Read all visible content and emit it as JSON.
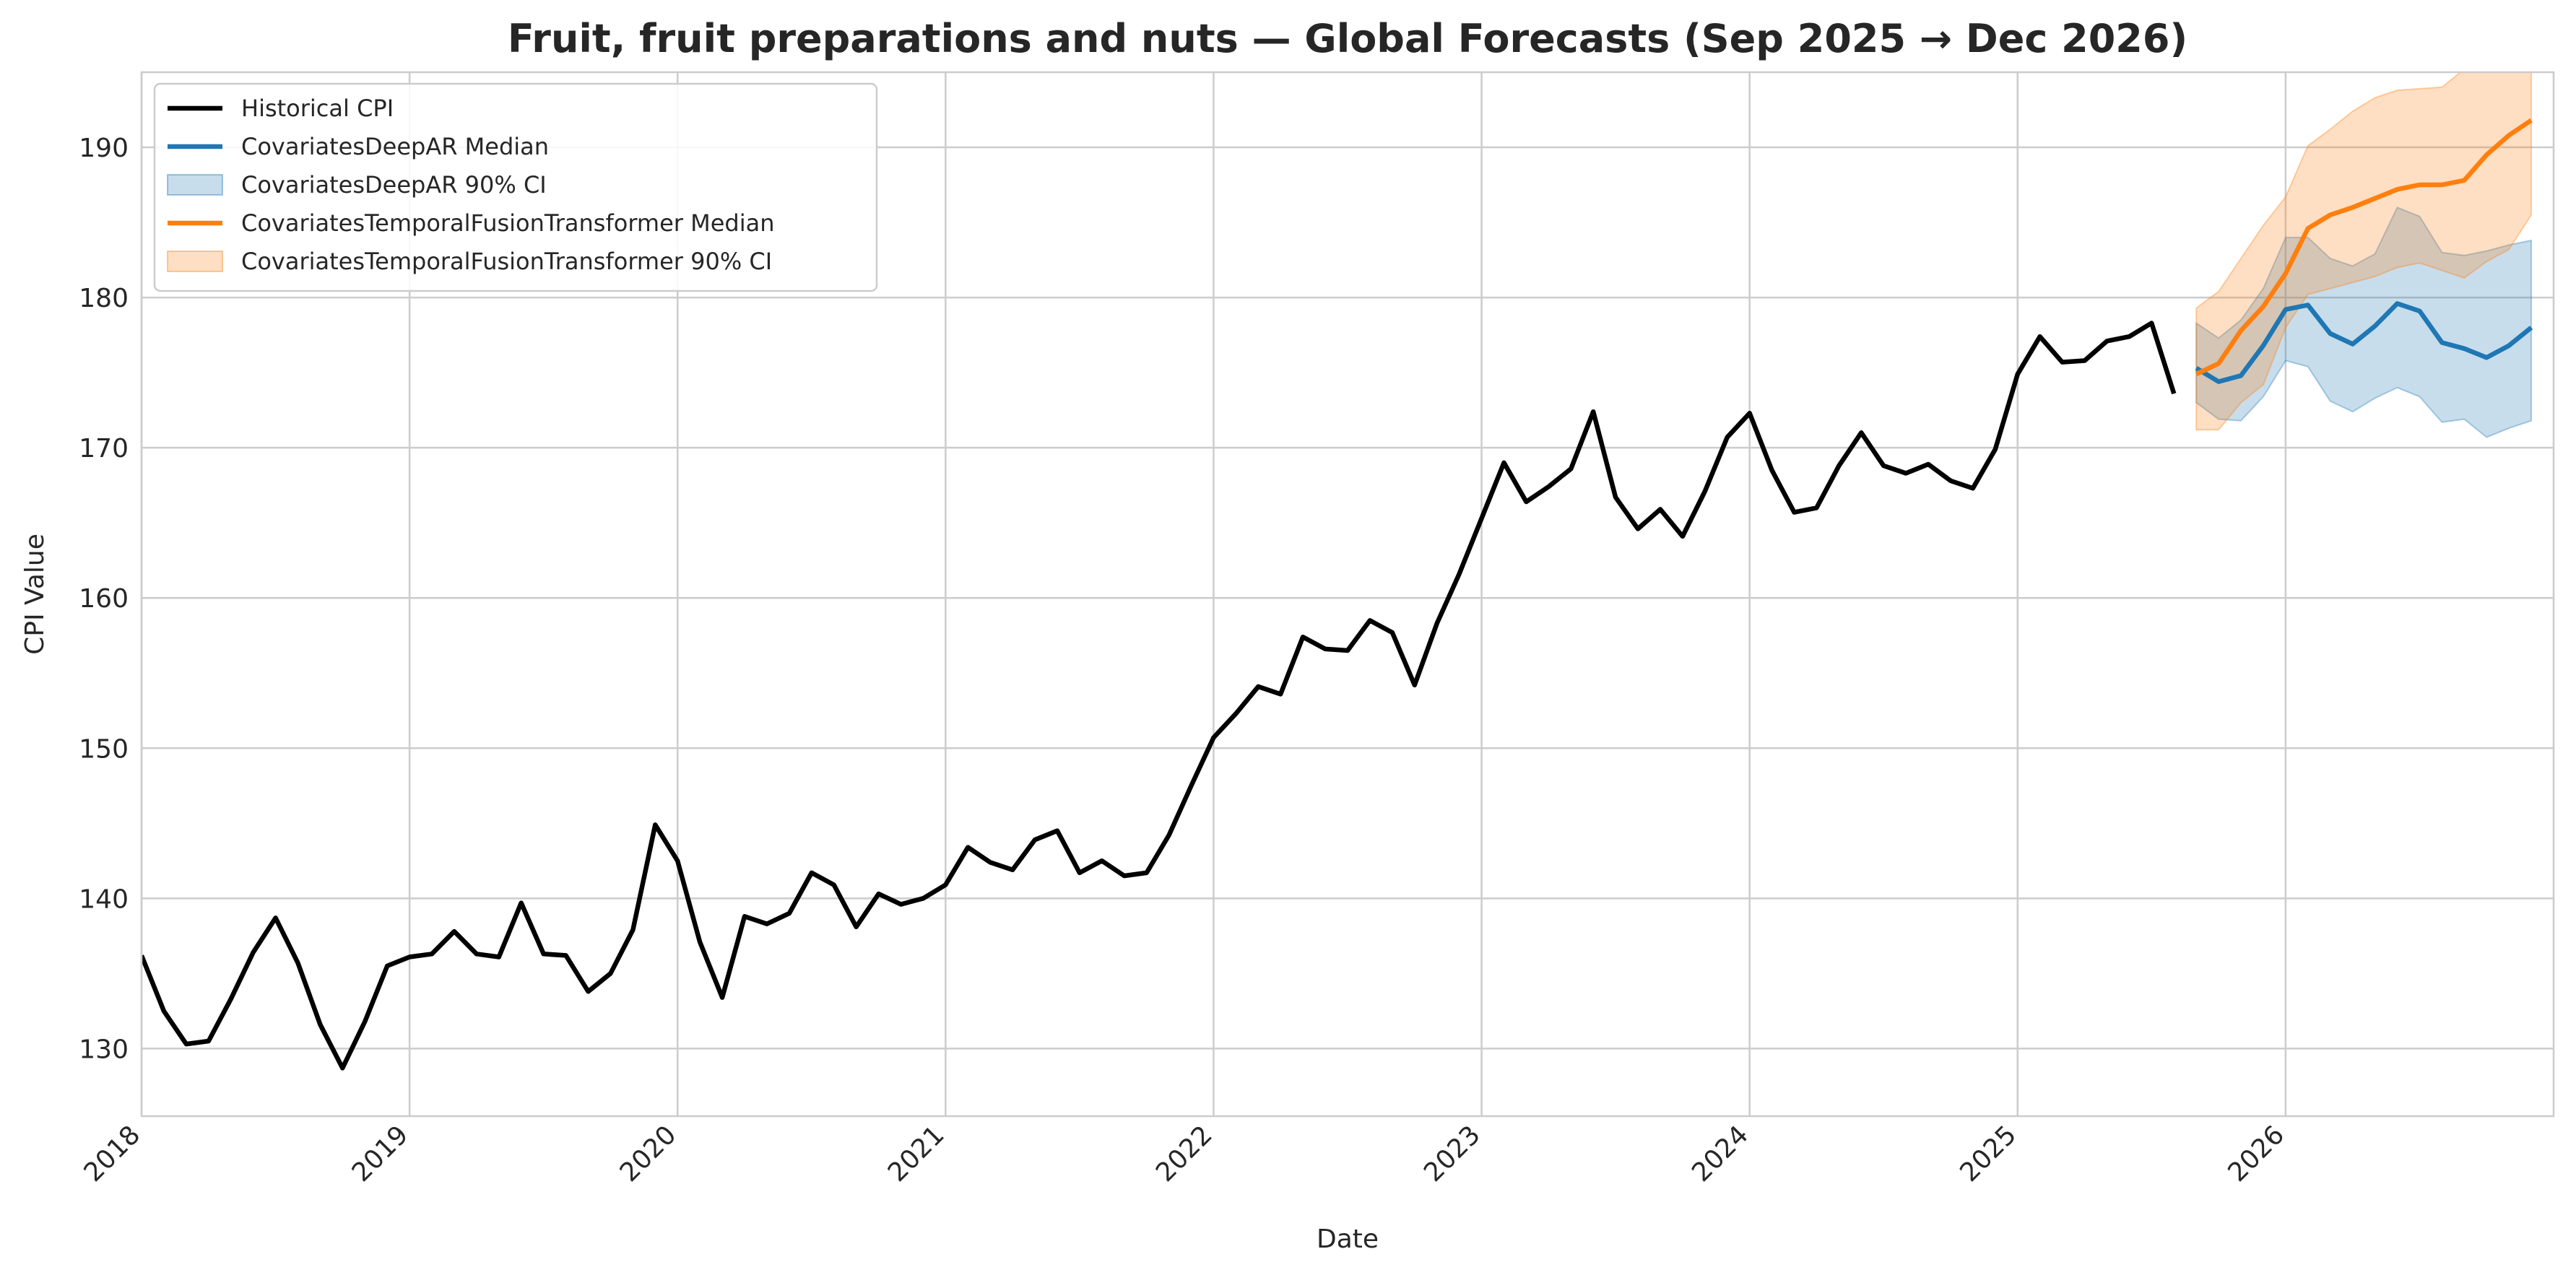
{
  "chart_data": {
    "type": "line",
    "title": "Fruit, fruit preparations and nuts — Global Forecasts (Sep 2025 → Dec 2026)",
    "xlabel": "Date",
    "ylabel": "CPI Value",
    "xlim": [
      "2018-01",
      "2027-01"
    ],
    "ylim": [
      125.5,
      195
    ],
    "grid": true,
    "legend_position": "top-left",
    "x_ticks": [
      "2018",
      "2019",
      "2020",
      "2021",
      "2022",
      "2023",
      "2024",
      "2025",
      "2026"
    ],
    "y_ticks": [
      130,
      140,
      150,
      160,
      170,
      180,
      190
    ],
    "legend": [
      {
        "label": "Historical CPI",
        "kind": "line",
        "color": "#000000"
      },
      {
        "label": "CovariatesDeepAR Median",
        "kind": "line",
        "color": "#1f77b4"
      },
      {
        "label": "CovariatesDeepAR 90% CI",
        "kind": "band",
        "color": "#1f77b4"
      },
      {
        "label": "CovariatesTemporalFusionTransformer Median",
        "kind": "line",
        "color": "#ff7f0e"
      },
      {
        "label": "CovariatesTemporalFusionTransformer 90% CI",
        "kind": "band",
        "color": "#ff7f0e"
      }
    ],
    "historical": {
      "name": "Historical CPI",
      "color": "#000000",
      "start": "2018-01",
      "values": [
        136.2,
        132.5,
        130.3,
        130.5,
        133.3,
        136.4,
        138.7,
        135.7,
        131.6,
        128.7,
        131.8,
        135.5,
        136.1,
        136.3,
        137.8,
        136.3,
        136.1,
        139.7,
        136.3,
        136.2,
        133.8,
        135.0,
        137.9,
        144.9,
        142.5,
        137.1,
        133.4,
        138.8,
        138.3,
        139.0,
        141.7,
        140.9,
        138.1,
        140.3,
        139.6,
        140.0,
        140.9,
        143.4,
        142.4,
        141.9,
        143.9,
        144.5,
        141.7,
        142.5,
        141.5,
        141.7,
        144.2,
        147.5,
        150.7,
        152.3,
        154.1,
        153.6,
        157.4,
        156.6,
        156.5,
        158.5,
        157.7,
        154.2,
        158.3,
        161.6,
        165.3,
        169.0,
        166.4,
        167.4,
        168.6,
        172.4,
        166.7,
        164.6,
        165.9,
        164.1,
        167.1,
        170.7,
        172.3,
        168.5,
        165.7,
        166.0,
        168.8,
        171.0,
        168.8,
        168.3,
        168.9,
        167.8,
        167.3,
        169.9,
        174.9,
        177.4,
        175.7,
        175.8,
        177.1,
        177.4,
        178.3,
        173.6
      ]
    },
    "series": [
      {
        "name": "CovariatesDeepAR",
        "color": "#1f77b4",
        "start": "2025-09",
        "median": [
          175.3,
          174.4,
          174.8,
          176.8,
          179.2,
          179.5,
          177.6,
          176.9,
          178.1,
          179.6,
          179.1,
          177.0,
          176.6,
          176.0,
          176.8,
          178.0
        ],
        "lower": [
          173.0,
          171.9,
          171.8,
          173.4,
          175.8,
          175.4,
          173.1,
          172.4,
          173.3,
          174.0,
          173.4,
          171.7,
          171.9,
          170.7,
          171.3,
          171.8
        ],
        "upper": [
          178.3,
          177.3,
          178.5,
          180.6,
          184.0,
          184.0,
          182.6,
          182.1,
          182.9,
          186.0,
          185.4,
          183.0,
          182.8,
          183.1,
          183.5,
          183.8
        ]
      },
      {
        "name": "CovariatesTemporalFusionTransformer",
        "color": "#ff7f0e",
        "start": "2025-09",
        "median": [
          174.9,
          175.6,
          177.8,
          179.4,
          181.6,
          184.6,
          185.5,
          186.0,
          186.6,
          187.2,
          187.5,
          187.5,
          187.8,
          189.5,
          190.8,
          191.8
        ],
        "lower": [
          171.2,
          171.2,
          173.0,
          174.2,
          178.0,
          180.2,
          180.6,
          181.0,
          181.4,
          182.0,
          182.3,
          181.8,
          181.3,
          182.4,
          183.2,
          185.5
        ],
        "upper": [
          179.3,
          180.4,
          182.6,
          184.8,
          186.7,
          190.1,
          191.2,
          192.4,
          193.3,
          193.8,
          193.9,
          194.0,
          195.2,
          197.0,
          198.5,
          199.5
        ]
      }
    ]
  }
}
